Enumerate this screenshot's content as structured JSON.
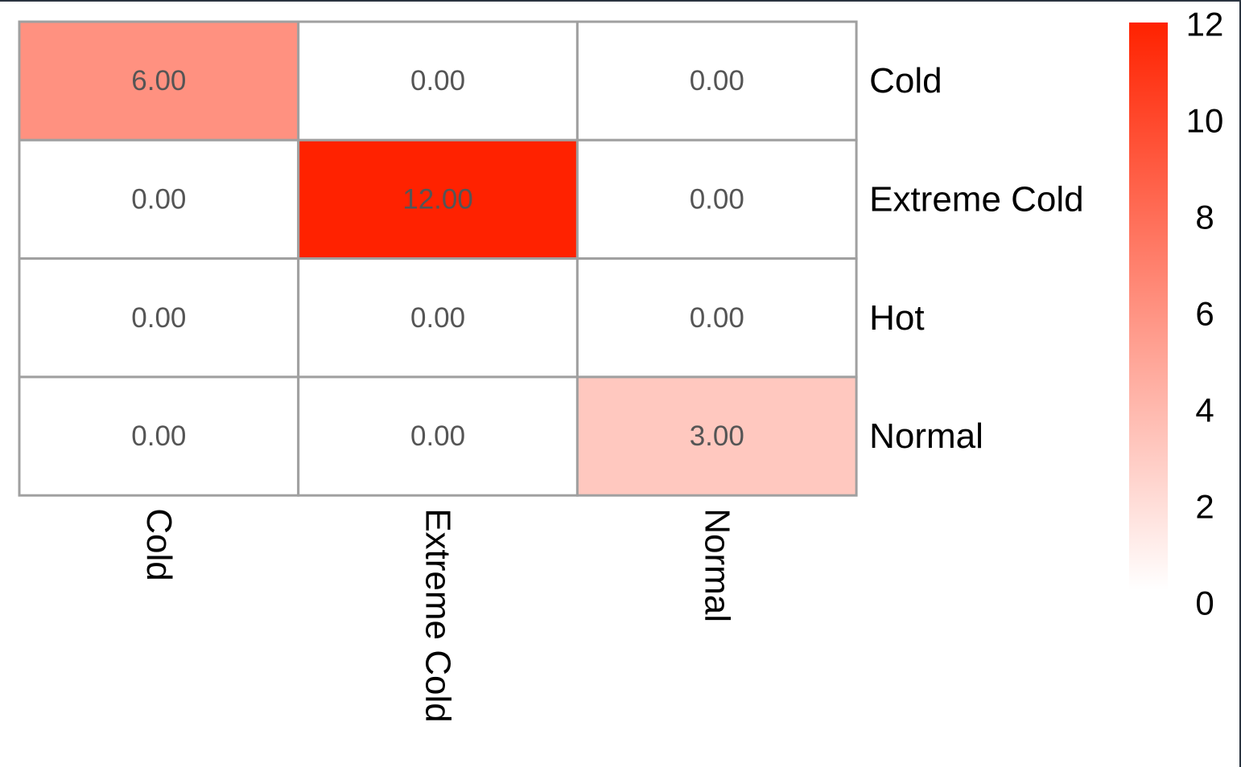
{
  "chart_data": {
    "type": "heatmap",
    "title": "",
    "rows": [
      "Cold",
      "Extreme Cold",
      "Hot",
      "Normal"
    ],
    "columns": [
      "Cold",
      "Extreme Cold",
      "Normal"
    ],
    "values": [
      [
        6,
        0,
        0
      ],
      [
        0,
        12,
        0
      ],
      [
        0,
        0,
        0
      ],
      [
        0,
        0,
        3
      ]
    ],
    "cell_labels": [
      [
        "6.00",
        "0.00",
        "0.00"
      ],
      [
        "0.00",
        "12.00",
        "0.00"
      ],
      [
        "0.00",
        "0.00",
        "0.00"
      ],
      [
        "0.00",
        "0.00",
        "3.00"
      ]
    ],
    "color_scale": {
      "min": 0,
      "max": 12,
      "low_color": "#ffffff",
      "high_color": "#ff2200",
      "ticks": [
        "0",
        "2",
        "4",
        "6",
        "8",
        "10",
        "12"
      ]
    },
    "grid_color": "#a0a0a0",
    "legend_position": "right"
  }
}
